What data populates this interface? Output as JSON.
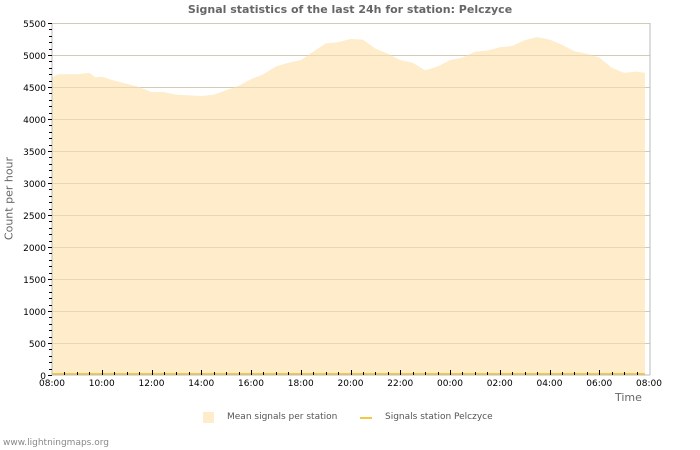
{
  "chart_data": {
    "type": "area",
    "title": "Signal statistics of the last 24h for station: Pelczyce",
    "xlabel": "Time",
    "ylabel": "Count per hour",
    "ylim": [
      0,
      5500
    ],
    "yticks": [
      "0",
      "500",
      "1000",
      "1500",
      "2000",
      "2500",
      "3000",
      "3500",
      "4000",
      "4500",
      "5000",
      "5500"
    ],
    "xticks": [
      "08:00",
      "10:00",
      "12:00",
      "14:00",
      "16:00",
      "18:00",
      "20:00",
      "22:00",
      "00:00",
      "02:00",
      "04:00",
      "06:00",
      "08:00"
    ],
    "grid": true,
    "legend_position": "bottom",
    "x": [
      "08:00",
      "08:15",
      "09:00",
      "09:30",
      "09:45",
      "10:00",
      "10:30",
      "11:00",
      "11:30",
      "12:00",
      "12:30",
      "13:00",
      "14:00",
      "14:30",
      "15:00",
      "15:30",
      "16:00",
      "16:30",
      "17:00",
      "17:30",
      "18:00",
      "18:30",
      "19:00",
      "19:30",
      "20:00",
      "20:30",
      "21:00",
      "21:30",
      "22:00",
      "22:30",
      "23:00",
      "23:30",
      "00:00",
      "00:30",
      "01:00",
      "01:30",
      "02:00",
      "02:30",
      "03:00",
      "03:30",
      "04:00",
      "04:30",
      "05:00",
      "05:30",
      "06:00",
      "06:30",
      "07:00",
      "07:30",
      "07:50"
    ],
    "series": [
      {
        "name": "Mean signals per station",
        "type": "area",
        "color": "#feecca",
        "values": [
          4650,
          4700,
          4700,
          4720,
          4650,
          4660,
          4600,
          4550,
          4500,
          4420,
          4420,
          4380,
          4360,
          4380,
          4450,
          4520,
          4620,
          4700,
          4820,
          4880,
          4920,
          5050,
          5180,
          5200,
          5250,
          5240,
          5100,
          5020,
          4920,
          4880,
          4760,
          4820,
          4920,
          4960,
          5050,
          5070,
          5120,
          5140,
          5230,
          5280,
          5240,
          5160,
          5060,
          5020,
          4960,
          4800,
          4720,
          4740,
          4720
        ]
      },
      {
        "name": "Signals station Pelczyce",
        "type": "line",
        "color": "#f5c842",
        "values": [
          0,
          0,
          0,
          0,
          0,
          0,
          0,
          0,
          0,
          0,
          0,
          0,
          0,
          0,
          0,
          0,
          0,
          0,
          0,
          0,
          0,
          0,
          0,
          0,
          0,
          0,
          0,
          0,
          0,
          0,
          0,
          0,
          0,
          0,
          0,
          0,
          0,
          0,
          0,
          0,
          0,
          0,
          0,
          0,
          0,
          0,
          0,
          0,
          0
        ]
      }
    ]
  },
  "legend": {
    "mean_label": "Mean signals per station",
    "station_label": "Signals station Pelczyce"
  },
  "footer": "www.lightningmaps.org"
}
